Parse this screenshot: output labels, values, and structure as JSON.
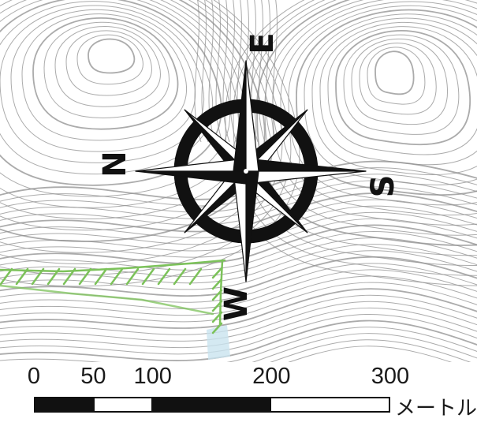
{
  "map": {
    "contour_color": "#8f8f8f",
    "trail_color": "#7cc25a",
    "water_color": "#c9e3ef"
  },
  "compass": {
    "labels": {
      "top": "E",
      "left": "N",
      "right": "S",
      "bottom": "W"
    },
    "color": "#111111"
  },
  "scale_bar": {
    "ticks": [
      {
        "value": 0,
        "label": "0"
      },
      {
        "value": 50,
        "label": "50"
      },
      {
        "value": 100,
        "label": "100"
      },
      {
        "value": 200,
        "label": "200"
      },
      {
        "value": 300,
        "label": "300"
      }
    ],
    "max": 300,
    "unit": "メートル",
    "segments": [
      {
        "from": 0,
        "to": 50,
        "fill": "#111111"
      },
      {
        "from": 50,
        "to": 100,
        "fill": "#ffffff"
      },
      {
        "from": 100,
        "to": 200,
        "fill": "#111111"
      },
      {
        "from": 200,
        "to": 300,
        "fill": "#ffffff"
      }
    ]
  }
}
